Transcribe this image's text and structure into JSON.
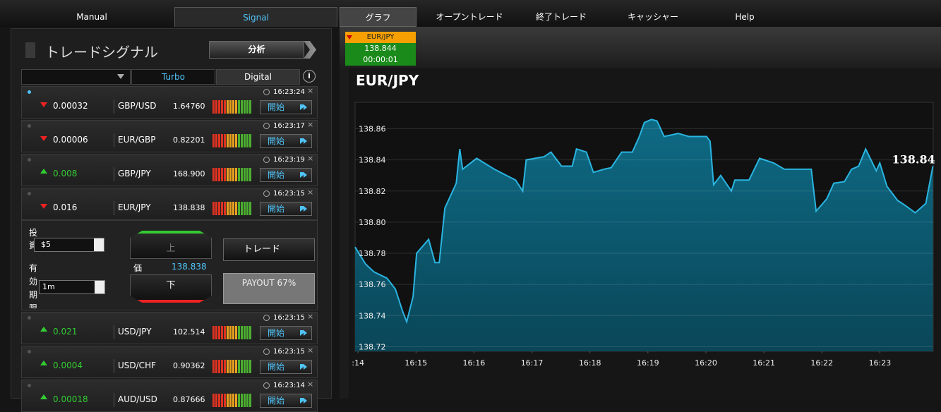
{
  "nav": {
    "left_tabs": [
      "Manual",
      "Signal"
    ],
    "right_tabs": [
      "グラフ",
      "オープントレード",
      "終了トレード",
      "キャッシャー",
      "Help"
    ]
  },
  "signals": {
    "title": "トレードシグナル",
    "analyze_button": "分析",
    "filters": [
      "Turbo",
      "Digital"
    ],
    "info": "i",
    "start_button": "開始",
    "close": "×",
    "rows": [
      {
        "direction": "down",
        "highlighted": true,
        "change": "0.00032",
        "pair": "GBP/USD",
        "price": "1.64760",
        "time": "16:23:24"
      },
      {
        "direction": "down",
        "highlighted": false,
        "change": "0.00006",
        "pair": "EUR/GBP",
        "price": "0.82201",
        "time": "16:23:17"
      },
      {
        "direction": "up",
        "highlighted": false,
        "change": "0.008",
        "pair": "GBP/JPY",
        "price": "168.900",
        "time": "16:23:19"
      },
      {
        "direction": "down",
        "highlighted": false,
        "change": "0.016",
        "pair": "EUR/JPY",
        "price": "138.838",
        "time": "16:23:15"
      },
      {
        "direction": "up",
        "highlighted": false,
        "change": "0.021",
        "pair": "USD/JPY",
        "price": "102.514",
        "time": "16:23:15"
      },
      {
        "direction": "up",
        "highlighted": false,
        "change": "0.0004",
        "pair": "USD/CHF",
        "price": "0.90362",
        "time": "16:23:15"
      },
      {
        "direction": "up",
        "highlighted": false,
        "change": "0.00018",
        "pair": "AUD/USD",
        "price": "0.87666",
        "time": "16:23:14"
      }
    ],
    "trade_form": {
      "after_row": 3,
      "investment_label": "投資",
      "investment": "$5",
      "expiry_label": "有効期限",
      "expiry": "1m",
      "up": "上",
      "down": "下",
      "price_label": "価",
      "price": "138.838",
      "trade_button": "トレード",
      "payout": "PAYOUT 67%"
    }
  },
  "ticker": {
    "pair": "EUR/JPY",
    "price": "138.844",
    "countdown": "00:00:01"
  },
  "chart_data": {
    "type": "area",
    "title": "EUR/JPY",
    "color": "#2ab4e0",
    "grid": true,
    "current_label": "138.84",
    "x": [
      13.95,
      14.133,
      14.279,
      14.499,
      14.645,
      14.767,
      14.84,
      14.95,
      15.011,
      15.218,
      15.328,
      15.401,
      15.499,
      15.694,
      15.755,
      15.804,
      16.048,
      16.352,
      16.718,
      16.84,
      16.901,
      17.206,
      17.328,
      17.511,
      17.694,
      17.767,
      17.938,
      18.06,
      18.243,
      18.365,
      18.548,
      18.73,
      18.852,
      18.938,
      19.06,
      19.157,
      19.279,
      19.523,
      19.706,
      20.011,
      20.072,
      20.133,
      20.255,
      20.438,
      20.499,
      20.743,
      20.926,
      21.17,
      21.352,
      21.816,
      21.901,
      22.084,
      22.206,
      22.389,
      22.511,
      22.633,
      22.755,
      22.938,
      22.999,
      23.121,
      23.304,
      23.426,
      23.609,
      23.792,
      23.914
    ],
    "values": [
      138.784,
      138.773,
      138.768,
      138.764,
      138.757,
      138.743,
      138.736,
      138.752,
      138.78,
      138.789,
      138.774,
      138.774,
      138.809,
      138.825,
      138.847,
      138.834,
      138.841,
      138.834,
      138.827,
      138.82,
      138.84,
      138.842,
      138.845,
      138.836,
      138.836,
      138.847,
      138.845,
      138.832,
      138.834,
      138.835,
      138.845,
      138.845,
      138.855,
      138.864,
      138.866,
      138.865,
      138.855,
      138.857,
      138.855,
      138.855,
      138.852,
      138.824,
      138.83,
      138.82,
      138.827,
      138.827,
      138.841,
      138.838,
      138.834,
      138.834,
      138.807,
      138.815,
      138.825,
      138.826,
      138.834,
      138.836,
      138.847,
      138.833,
      138.838,
      138.823,
      138.814,
      138.811,
      138.806,
      138.812,
      138.836
    ],
    "xlim": [
      13.95,
      23.92
    ],
    "ylim": [
      138.717,
      138.877
    ],
    "xticks": [
      {
        "value": 14,
        "label": ":14"
      },
      {
        "value": 15,
        "label": "16:15"
      },
      {
        "value": 16,
        "label": "16:16"
      },
      {
        "value": 17,
        "label": "16:17"
      },
      {
        "value": 18,
        "label": "16:18"
      },
      {
        "value": 19,
        "label": "16:19"
      },
      {
        "value": 20,
        "label": "16:20"
      },
      {
        "value": 21,
        "label": "16:21"
      },
      {
        "value": 22,
        "label": "16:22"
      },
      {
        "value": 23,
        "label": "16:23"
      }
    ],
    "yticks": [
      138.72,
      138.74,
      138.76,
      138.78,
      {
        "value": 138.8,
        "label": "138.80"
      },
      138.82,
      138.84,
      138.86
    ]
  }
}
